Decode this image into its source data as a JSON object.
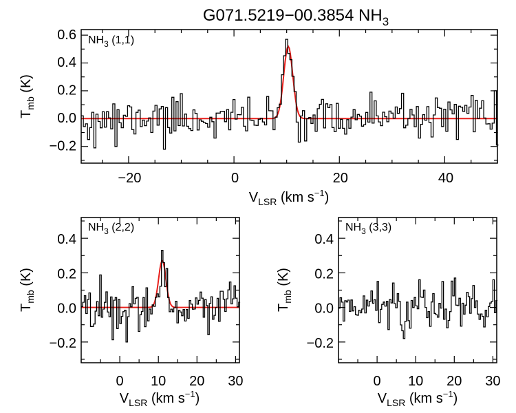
{
  "colors": {
    "spectrum": "#000000",
    "fit": "#e8201c",
    "background": "#ffffff"
  },
  "chart_data": {
    "title": {
      "base": "G071.5219−00.3854 NH",
      "sub": "3"
    },
    "xlabel": {
      "base": "V",
      "sub": "LSR",
      "rest": " (km s",
      "sup": "−1",
      "end": ")"
    },
    "ylabel": {
      "base": "T",
      "sub": "mb",
      "rest": " (K)"
    },
    "panels": [
      {
        "id": "p11",
        "type": "line",
        "label": {
          "base": "NH",
          "sub": "3",
          "rest": " (1,1)"
        },
        "xlim": [
          -29,
          50
        ],
        "ylim": [
          -0.32,
          0.64
        ],
        "xticks": [
          -20,
          0,
          20,
          40
        ],
        "xtick_labels": [
          "−20",
          "0",
          "20",
          "40"
        ],
        "yticks": [
          -0.2,
          0.0,
          0.2,
          0.4,
          0.6
        ],
        "ytick_labels": [
          "−0.2",
          "0.0",
          "0.2",
          "0.4",
          "0.6"
        ],
        "minor_x": 5,
        "minor_y": 0.1,
        "channel_width": 0.4,
        "seed": 11,
        "noise_sigma": 0.068,
        "features": [
          {
            "x": -29,
            "y": 0.02
          },
          {
            "x": -26.5,
            "y": -0.21
          },
          {
            "x": -22.5,
            "y": -0.2
          },
          {
            "x": -14,
            "y": 0.07
          },
          {
            "x": -13.1,
            "y": -0.22
          },
          {
            "x": -9.8,
            "y": 0.18
          },
          {
            "x": 9.9,
            "y": 0.57
          },
          {
            "x": 26.1,
            "y": 0.19
          },
          {
            "x": 40.8,
            "y": 0.12
          },
          {
            "x": 42.5,
            "y": -0.15
          },
          {
            "x": 49.7,
            "y": 0.2
          },
          {
            "x": 49.9,
            "y": -0.19
          }
        ],
        "fit": {
          "amplitude": 0.52,
          "center": 10.3,
          "sigma": 0.85
        }
      },
      {
        "id": "p22",
        "type": "line",
        "label": {
          "base": "NH",
          "sub": "3",
          "rest": " (2,2)"
        },
        "xlim": [
          -10,
          31
        ],
        "ylim": [
          -0.32,
          0.52
        ],
        "xticks": [
          0,
          10,
          20,
          30
        ],
        "xtick_labels": [
          "0",
          "10",
          "20",
          "30"
        ],
        "yticks": [
          -0.2,
          0.0,
          0.2,
          0.4
        ],
        "ytick_labels": [
          "−0.2",
          "0.0",
          "0.2",
          "0.4"
        ],
        "minor_x": 5,
        "minor_y": 0.1,
        "channel_width": 0.4,
        "seed": 22,
        "noise_sigma": 0.06,
        "features": [
          {
            "x": -9.6,
            "y": 0.03
          },
          {
            "x": 1.8,
            "y": -0.2
          },
          {
            "x": 11,
            "y": 0.33
          },
          {
            "x": 29.5,
            "y": 0.05
          }
        ],
        "fit": {
          "amplitude": 0.27,
          "center": 11.0,
          "sigma": 0.95
        }
      },
      {
        "id": "p33",
        "type": "line",
        "label": {
          "base": "NH",
          "sub": "3",
          "rest": " (3,3)"
        },
        "xlim": [
          -10,
          31
        ],
        "ylim": [
          -0.32,
          0.52
        ],
        "xticks": [
          0,
          10,
          20,
          30
        ],
        "xtick_labels": [
          "0",
          "10",
          "20",
          "30"
        ],
        "yticks": [
          -0.2,
          0.0,
          0.2,
          0.4
        ],
        "ytick_labels": [
          "−0.2",
          "0.0",
          "0.2",
          "0.4"
        ],
        "minor_x": 5,
        "minor_y": 0.1,
        "channel_width": 0.4,
        "seed": 33,
        "noise_sigma": 0.058,
        "features": [
          {
            "x": 0,
            "y": 0.15
          },
          {
            "x": 7,
            "y": -0.18
          },
          {
            "x": 11,
            "y": 0.16
          },
          {
            "x": 17,
            "y": 0.15
          },
          {
            "x": 20,
            "y": 0.17
          },
          {
            "x": 30,
            "y": 0.16
          }
        ],
        "fit": null
      }
    ]
  }
}
